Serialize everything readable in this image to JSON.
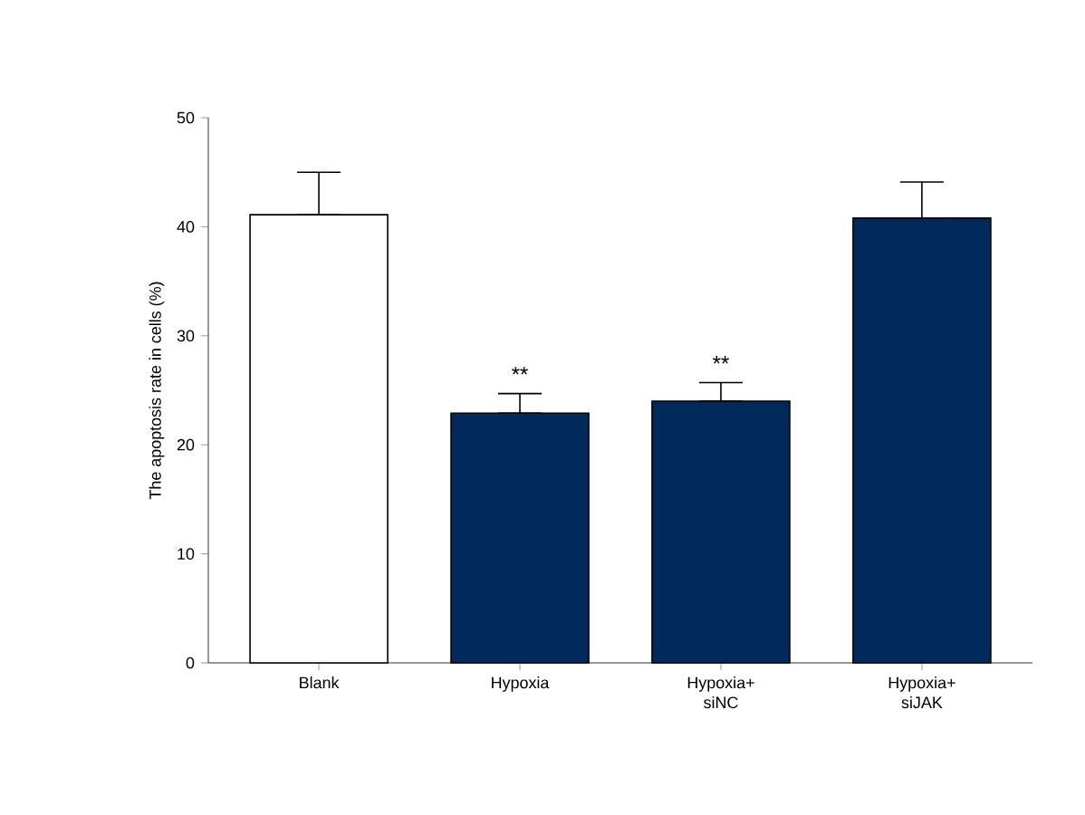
{
  "chart_data": {
    "type": "bar",
    "ylabel": "The apoptosis rate in cells (%)",
    "categories": [
      "Blank",
      "Hypoxia",
      "Hypoxia+ siNC",
      "Hypoxia+ siJAK"
    ],
    "values": [
      41.1,
      22.9,
      24.0,
      40.8
    ],
    "colors": [
      "#ffffff",
      "#002a5c",
      "#002a5c",
      "#002a5c"
    ],
    "errors": [
      [
        41.1,
        45.0
      ],
      [
        22.9,
        24.7
      ],
      [
        24.0,
        25.7
      ],
      [
        40.8,
        44.1
      ]
    ],
    "ylim": [
      0,
      50
    ],
    "yticks": [
      0,
      10,
      20,
      30,
      40,
      50
    ],
    "grid": false,
    "annotations": [
      {
        "text": "**",
        "x": "Hypoxia",
        "y": 24.7
      },
      {
        "text": "**",
        "x": "Hypoxia+ siNC",
        "y": 25.7
      }
    ]
  }
}
